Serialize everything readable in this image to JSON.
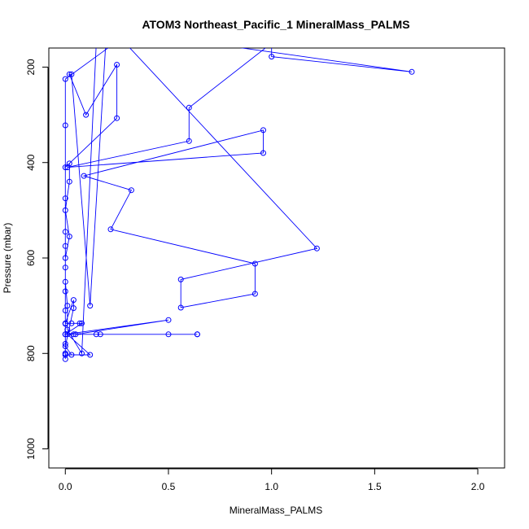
{
  "chart_data": {
    "type": "line",
    "title": "ATOM3 Northeast_Pacific_1 MineralMass_PALMS",
    "xlabel": "MineralMass_PALMS",
    "ylabel": "Pressure (mbar)",
    "xlim": [
      -0.08,
      2.13
    ],
    "ylim": [
      1040,
      160
    ],
    "y_reversed": true,
    "x_ticks": [
      0.0,
      0.5,
      1.0,
      1.5,
      2.0
    ],
    "x_tick_labels": [
      "0.0",
      "0.5",
      "1.0",
      "1.5",
      "2.0"
    ],
    "y_ticks": [
      200,
      400,
      600,
      800,
      1000
    ],
    "y_tick_labels": [
      "200",
      "400",
      "600",
      "800",
      "1000"
    ],
    "grid": false,
    "marker": "open-circle",
    "color": "#0000ff",
    "series": [
      {
        "values": [
          [
            0.15,
            150
          ],
          [
            0.08,
            800
          ],
          [
            0.01,
            750
          ],
          [
            0.01,
            700
          ],
          [
            0.0,
            650
          ],
          [
            0.0,
            600
          ],
          [
            0.02,
            555
          ],
          [
            0.0,
            500
          ],
          [
            0.02,
            440
          ],
          [
            0.02,
            402
          ],
          [
            0.0,
            410
          ],
          [
            0.25,
            307
          ],
          [
            0.25,
            195
          ],
          [
            0.1,
            300
          ],
          [
            0.02,
            215
          ],
          [
            0.03,
            215
          ],
          [
            0.12,
            700
          ],
          [
            0.2,
            120
          ],
          [
            1.68,
            210
          ],
          [
            1.0,
            178
          ],
          [
            1.0,
            150
          ],
          [
            0.6,
            285
          ],
          [
            0.6,
            355
          ],
          [
            0.01,
            410
          ],
          [
            0.96,
            380
          ],
          [
            0.96,
            332
          ],
          [
            0.09,
            428
          ],
          [
            0.32,
            458
          ],
          [
            0.22,
            540
          ],
          [
            0.92,
            612
          ],
          [
            0.92,
            675
          ],
          [
            0.56,
            704
          ],
          [
            0.56,
            645
          ],
          [
            1.22,
            580
          ],
          [
            0.27,
            140
          ],
          [
            0.0,
            225
          ],
          [
            0.0,
            322
          ],
          [
            0.0,
            475
          ],
          [
            0.0,
            545
          ],
          [
            0.0,
            575
          ],
          [
            0.0,
            620
          ],
          [
            0.0,
            670
          ],
          [
            0.0,
            710
          ],
          [
            0.0,
            738
          ],
          [
            0.0,
            760
          ],
          [
            0.0,
            780
          ],
          [
            0.0,
            800
          ],
          [
            0.0,
            812
          ],
          [
            0.0,
            803
          ],
          [
            0.03,
            803
          ],
          [
            0.0,
            785
          ],
          [
            0.04,
            705
          ],
          [
            0.04,
            688
          ],
          [
            0.0,
            737
          ],
          [
            0.03,
            737
          ],
          [
            0.07,
            737
          ],
          [
            0.08,
            737
          ],
          [
            0.0,
            760
          ],
          [
            0.04,
            760
          ],
          [
            0.15,
            760
          ],
          [
            0.17,
            760
          ],
          [
            0.5,
            760
          ],
          [
            0.64,
            760
          ],
          [
            0.64,
            760
          ],
          [
            0.0,
            760
          ],
          [
            0.5,
            730
          ],
          [
            0.05,
            760
          ],
          [
            0.01,
            760
          ],
          [
            0.12,
            803
          ],
          [
            0.0,
            803
          ],
          [
            0.0,
            800
          ]
        ]
      }
    ]
  }
}
